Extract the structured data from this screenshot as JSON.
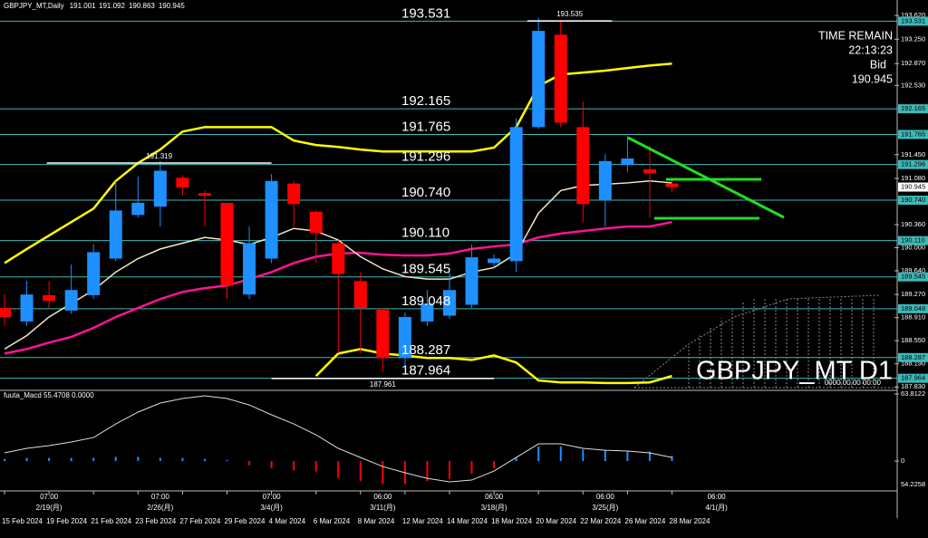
{
  "chart_data": {
    "type": "candlestick",
    "title": "GBPJPY_MT,Daily",
    "categories": [
      "15 Feb 2024",
      null,
      "19 Feb 2024",
      null,
      "21 Feb 2024",
      null,
      "23 Feb 2024",
      null,
      "27 Feb 2024",
      null,
      "29 Feb 2024",
      null,
      "4 Mar 2024",
      null,
      "6 Mar 2024",
      null,
      "8 Mar 2024",
      null,
      "12 Mar 2024",
      null,
      "14 Mar 2024",
      null,
      "18 Mar 2024",
      null,
      "20 Mar 2024",
      null,
      "22 Mar 2024",
      null,
      "26 Mar 2024",
      null,
      "28 Mar 2024"
    ],
    "open": [
      189.06,
      188.85,
      189.26,
      189.02,
      189.26,
      189.83,
      190.51,
      190.64,
      191.09,
      190.85,
      190.7,
      189.27,
      189.83,
      191.0,
      190.56,
      190.07,
      189.48,
      189.03,
      188.28,
      188.85,
      188.94,
      189.11,
      189.76,
      189.79,
      191.88,
      193.32,
      191.88,
      190.75,
      191.29,
      191.22,
      191.001
    ],
    "high": [
      189.27,
      189.48,
      189.48,
      189.74,
      190.05,
      191.04,
      191.11,
      191.35,
      191.13,
      190.89,
      190.7,
      190.33,
      191.15,
      191.04,
      190.58,
      190.12,
      189.62,
      189.06,
      188.99,
      189.34,
      189.62,
      190.05,
      189.9,
      192.02,
      193.58,
      193.55,
      192.28,
      191.46,
      191.74,
      191.6,
      191.092
    ],
    "low": [
      188.78,
      188.78,
      189.06,
      188.97,
      189.2,
      189.79,
      190.47,
      190.33,
      190.82,
      190.33,
      189.2,
      189.2,
      189.76,
      190.33,
      189.76,
      188.35,
      188.35,
      188.07,
      188.14,
      188.78,
      188.89,
      189.06,
      189.69,
      189.62,
      191.85,
      191.88,
      190.4,
      190.33,
      191.18,
      190.47,
      190.863
    ],
    "close": [
      188.92,
      189.27,
      189.17,
      189.34,
      189.93,
      190.58,
      190.7,
      191.2,
      190.94,
      190.81,
      189.41,
      190.07,
      191.04,
      190.68,
      190.23,
      189.59,
      189.06,
      188.28,
      188.92,
      189.13,
      189.34,
      189.85,
      189.83,
      191.88,
      193.38,
      191.95,
      190.68,
      191.35,
      191.39,
      191.16,
      190.945
    ],
    "up_color": "#1e90ff",
    "down_color": "#ff0000",
    "overlays": [
      {
        "color": "#ffff00",
        "width": 2.5,
        "values": [
          189.76,
          189.98,
          190.19,
          190.4,
          190.61,
          191.04,
          191.32,
          191.53,
          191.81,
          191.88,
          191.88,
          191.88,
          191.88,
          191.67,
          191.6,
          191.57,
          191.53,
          191.5,
          191.5,
          191.5,
          191.5,
          191.5,
          191.56,
          191.88,
          192.52,
          192.7,
          192.73,
          192.76,
          192.8,
          192.84,
          192.87
        ]
      },
      {
        "color": "#ffff00",
        "width": 2.5,
        "values": [
          null,
          null,
          null,
          null,
          null,
          null,
          null,
          null,
          null,
          null,
          null,
          null,
          null,
          null,
          188.0,
          188.35,
          188.42,
          188.35,
          188.32,
          188.28,
          188.28,
          188.25,
          188.32,
          188.21,
          187.93,
          187.9,
          187.9,
          187.89,
          187.89,
          187.9,
          188.0
        ]
      },
      {
        "color": "#ff1493",
        "width": 2.5,
        "values": [
          188.35,
          188.42,
          188.52,
          188.61,
          188.75,
          188.92,
          189.06,
          189.2,
          189.31,
          189.37,
          189.41,
          189.51,
          189.62,
          189.76,
          189.86,
          189.91,
          189.92,
          189.89,
          189.88,
          189.88,
          189.91,
          189.98,
          190.02,
          190.05,
          190.16,
          190.22,
          190.26,
          190.3,
          190.33,
          190.33,
          190.4
        ]
      },
      {
        "color": "#f5e6c8",
        "width": 1.5,
        "values": [
          188.42,
          188.63,
          188.92,
          189.13,
          189.34,
          189.62,
          189.83,
          189.98,
          190.07,
          190.16,
          190.12,
          190.05,
          190.16,
          190.3,
          190.26,
          190.12,
          189.86,
          189.67,
          189.55,
          189.51,
          189.51,
          189.62,
          189.69,
          189.91,
          190.54,
          190.89,
          190.97,
          190.99,
          191.01,
          191.04,
          191.01
        ]
      }
    ],
    "levels": [
      193.531,
      192.165,
      191.765,
      191.296,
      {
        "value": 190.74,
        "label": "190.740"
      },
      {
        "value": 190.11,
        "label": "190.110"
      },
      189.545,
      189.048,
      188.287,
      187.964
    ],
    "level_color": "#3fb8b8",
    "hl_marks": [
      193.535,
      191.319,
      187.961
    ],
    "ylim": [
      187.79,
      193.72
    ],
    "yticks": [
      {
        "value": 193.62,
        "label": "193.620"
      },
      {
        "value": 193.25,
        "label": "193.250"
      },
      {
        "value": 192.87,
        "label": "192.870"
      },
      {
        "value": 192.53,
        "label": "192.530"
      },
      {
        "value": 191.45,
        "label": "191.450"
      },
      {
        "value": 191.08,
        "label": "191.080"
      },
      {
        "value": 190.36,
        "label": "190.360"
      },
      {
        "value": 190.0,
        "label": "190.000"
      },
      {
        "value": 189.64,
        "label": "189.640"
      },
      {
        "value": 189.27,
        "label": "189.270"
      },
      {
        "value": 188.91,
        "label": "188.910"
      },
      {
        "value": 188.55,
        "label": "188.550"
      },
      {
        "value": 188.19,
        "label": "188.190"
      },
      {
        "value": 187.83,
        "label": "187.830"
      }
    ],
    "time_remain_label": "TIME REMAIN",
    "time_remain": "22:13:23",
    "bid_label": "Bid",
    "watermark": "GBPJPY_MT D1",
    "blank_time": "0000.00.00 00:00",
    "week_marks": [
      {
        "time": "07:00",
        "date": "2/19(月)"
      },
      {
        "time": "07:00",
        "date": "2/26(月)"
      },
      {
        "time": "07:00",
        "date": "3/4(月)"
      },
      {
        "time": "06:00",
        "date": "3/11(月)"
      },
      {
        "time": "06:00",
        "date": "3/18(月)"
      },
      {
        "time": "06:00",
        "date": "3/25(月)"
      },
      {
        "time": "06:00",
        "date": "4/1(月)"
      }
    ],
    "indicator": {
      "title": "fuuta_Macd 55.4708 0.0000",
      "ylim": [
        -28.4,
        66.4
      ],
      "yticks": [
        63.8122,
        0
      ],
      "bottom_label": "54.2258",
      "pos_color": "#1e90ff",
      "neg_color": "#ff0000",
      "line_color": "#dddddd",
      "histogram": [
        2,
        3,
        3,
        3,
        3,
        4,
        4,
        3,
        3,
        2,
        1,
        -4,
        -7,
        -9,
        -10,
        -16,
        -19,
        -22,
        -22,
        -19,
        -17,
        -12,
        -7,
        3,
        14,
        14,
        11,
        10,
        9,
        9,
        5
      ],
      "macd": [
        7.8,
        12.1,
        14.7,
        18.1,
        22.4,
        35.3,
        46.6,
        55.2,
        59.5,
        62.1,
        59.5,
        53.4,
        44.0,
        35.3,
        25.0,
        12.1,
        3.4,
        -5.2,
        -11.2,
        -16.4,
        -19.8,
        -18.1,
        -9.5,
        3.4,
        16.4,
        16.4,
        12.1,
        10.3,
        9.5,
        7.8,
        3.4
      ]
    }
  }
}
